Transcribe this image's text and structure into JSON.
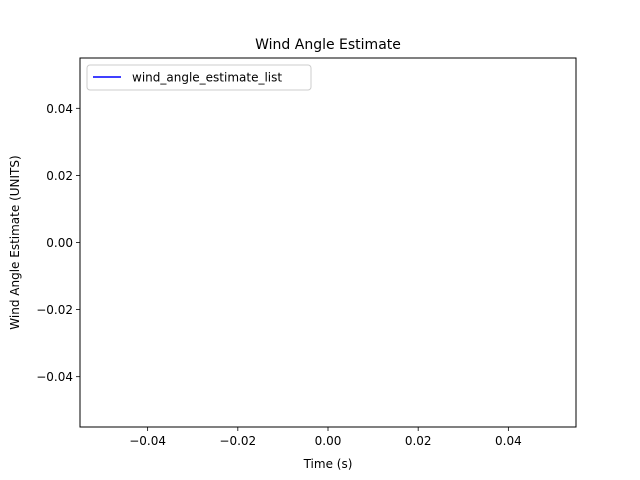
{
  "chart_data": {
    "type": "line",
    "title": "Wind Angle Estimate",
    "xlabel": "Time (s)",
    "ylabel": "Wind Angle Estimate (UNITS)",
    "xlim": [
      -0.055,
      0.055
    ],
    "ylim": [
      -0.055,
      0.055
    ],
    "x_ticks": [
      -0.04,
      -0.02,
      0.0,
      0.02,
      0.04
    ],
    "x_tick_labels": [
      "−0.04",
      "−0.02",
      "0.00",
      "0.02",
      "0.04"
    ],
    "y_ticks": [
      -0.04,
      -0.02,
      0.0,
      0.02,
      0.04
    ],
    "y_tick_labels": [
      "−0.04",
      "−0.02",
      "0.00",
      "0.02",
      "0.04"
    ],
    "grid": false,
    "legend_position": "upper-left",
    "series": [
      {
        "name": "wind_angle_estimate_list",
        "color": "#0000ff",
        "x": [],
        "y": []
      }
    ]
  }
}
